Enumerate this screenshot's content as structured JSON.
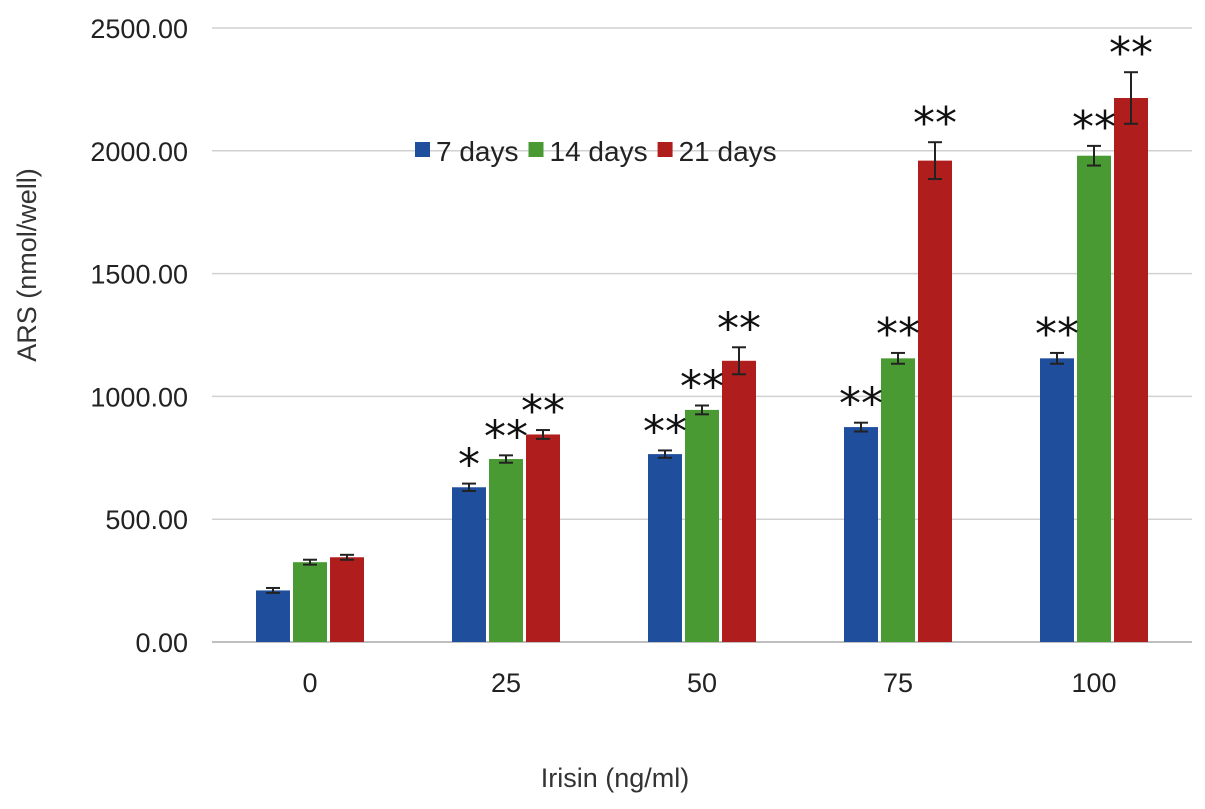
{
  "chart_data": {
    "type": "bar",
    "title": "",
    "xlabel": "Irisin (ng/ml)",
    "ylabel": "ARS (nmol/well)",
    "ylim": [
      0,
      2500
    ],
    "yticks": [
      "0.00",
      "500.00",
      "1000.00",
      "1500.00",
      "2000.00",
      "2500.00"
    ],
    "ytick_values": [
      0,
      500,
      1000,
      1500,
      2000,
      2500
    ],
    "grid": true,
    "legend_position": "top-center",
    "categories": [
      "0",
      "25",
      "50",
      "75",
      "100"
    ],
    "series": [
      {
        "name": "7 days",
        "color": "#1f4e9c",
        "values": [
          210,
          630,
          765,
          875,
          1155
        ],
        "errors": [
          10,
          15,
          15,
          18,
          22
        ],
        "significance": [
          "",
          "*",
          "**",
          "**",
          "**"
        ]
      },
      {
        "name": "14 days",
        "color": "#4a9a34",
        "values": [
          325,
          745,
          945,
          1155,
          1980
        ],
        "errors": [
          10,
          15,
          18,
          22,
          40
        ],
        "significance": [
          "",
          "**",
          "**",
          "**",
          "**"
        ]
      },
      {
        "name": "21 days",
        "color": "#b01d1d",
        "values": [
          345,
          845,
          1145,
          1960,
          2215
        ],
        "errors": [
          10,
          18,
          55,
          75,
          105
        ],
        "significance": [
          "",
          "**",
          "**",
          "**",
          "**"
        ]
      }
    ]
  }
}
